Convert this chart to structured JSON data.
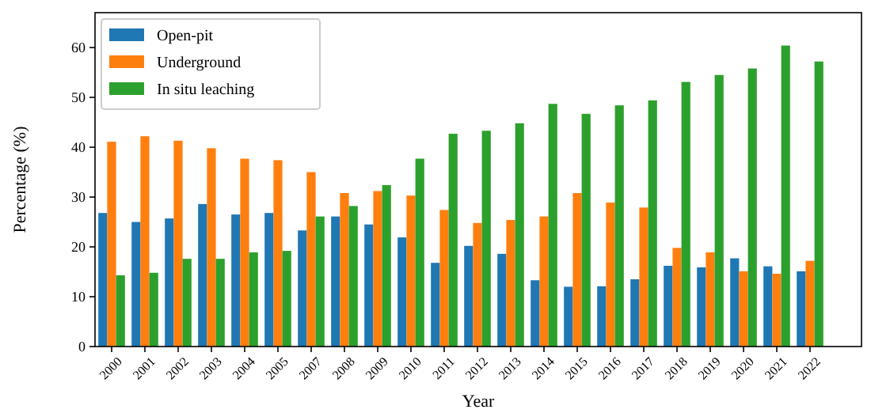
{
  "chart_data": {
    "type": "bar",
    "xlabel": "Year",
    "ylabel": "Percentage (%)",
    "categories": [
      "2000",
      "2001",
      "2002",
      "2003",
      "2004",
      "2005",
      "2007",
      "2008",
      "2009",
      "2010",
      "2011",
      "2012",
      "2013",
      "2014",
      "2015",
      "2016",
      "2017",
      "2018",
      "2019",
      "2020",
      "2021",
      "2022"
    ],
    "series": [
      {
        "name": "Open-pit",
        "color": "#1f77b4",
        "values": [
          26.8,
          25.0,
          25.7,
          28.6,
          26.5,
          26.8,
          23.3,
          26.1,
          24.5,
          21.9,
          16.8,
          20.2,
          18.6,
          13.3,
          12.0,
          12.1,
          13.5,
          16.2,
          15.9,
          17.7,
          16.1,
          15.1
        ]
      },
      {
        "name": "Underground",
        "color": "#ff7f0e",
        "values": [
          41.1,
          42.2,
          41.3,
          39.8,
          37.7,
          37.4,
          35.0,
          30.8,
          31.2,
          30.3,
          27.4,
          24.8,
          25.4,
          26.1,
          30.8,
          28.9,
          27.9,
          19.8,
          18.9,
          15.1,
          14.6,
          17.2
        ]
      },
      {
        "name": "In situ leaching",
        "color": "#2ca02c",
        "values": [
          14.3,
          14.8,
          17.6,
          17.6,
          18.9,
          19.2,
          26.1,
          28.2,
          32.4,
          37.7,
          42.7,
          43.3,
          44.8,
          48.7,
          46.7,
          48.4,
          49.4,
          53.1,
          54.5,
          55.8,
          60.4,
          57.2
        ]
      }
    ],
    "ylim": [
      0,
      67
    ],
    "yticks": [
      0,
      10,
      20,
      30,
      40,
      50,
      60
    ],
    "legend": "top left"
  }
}
